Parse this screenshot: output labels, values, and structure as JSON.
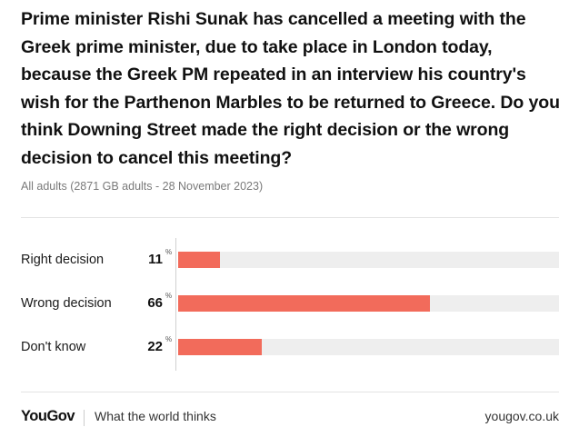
{
  "question": "Prime minister Rishi Sunak has cancelled a meeting with the Greek prime minister, due to take place in London today, because the Greek PM repeated in an interview his country's wish for the Parthenon Marbles to be returned to Greece. Do you think Downing Street made the right decision or the wrong decision to cancel this meeting?",
  "subtitle": "All adults (2871 GB adults - 28 November 2023)",
  "colors": {
    "bar": "#f26b5b",
    "track": "#eeeeee"
  },
  "chart_data": {
    "type": "bar",
    "orientation": "horizontal",
    "categories": [
      "Right decision",
      "Wrong decision",
      "Don't know"
    ],
    "values": [
      11,
      66,
      22
    ],
    "value_labels": [
      "11",
      "66",
      "22"
    ],
    "unit": "%",
    "xlim": [
      0,
      100
    ]
  },
  "footer": {
    "logo": "YouGov",
    "tagline": "What the world thinks",
    "url": "yougov.co.uk"
  }
}
